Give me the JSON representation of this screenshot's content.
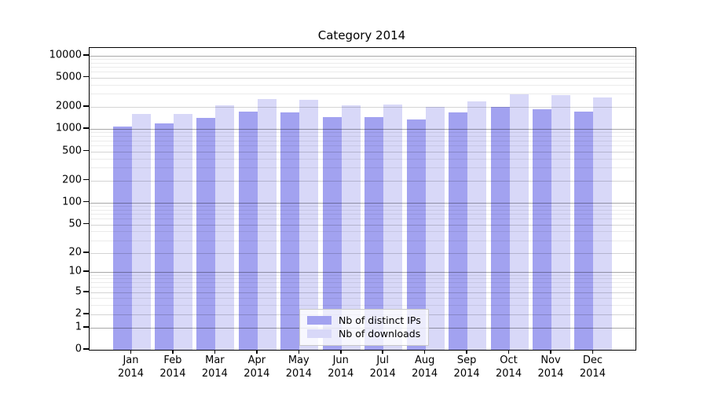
{
  "chart_data": {
    "type": "bar",
    "title": "Category 2014",
    "categories": [
      {
        "month": "Jan",
        "year": "2014"
      },
      {
        "month": "Feb",
        "year": "2014"
      },
      {
        "month": "Mar",
        "year": "2014"
      },
      {
        "month": "Apr",
        "year": "2014"
      },
      {
        "month": "May",
        "year": "2014"
      },
      {
        "month": "Jun",
        "year": "2014"
      },
      {
        "month": "Jul",
        "year": "2014"
      },
      {
        "month": "Aug",
        "year": "2014"
      },
      {
        "month": "Sep",
        "year": "2014"
      },
      {
        "month": "Oct",
        "year": "2014"
      },
      {
        "month": "Nov",
        "year": "2014"
      },
      {
        "month": "Dec",
        "year": "2014"
      }
    ],
    "series": [
      {
        "name": "Nb of distinct IPs",
        "color": "#a2a2f0",
        "values": [
          1080,
          1200,
          1410,
          1710,
          1670,
          1460,
          1440,
          1340,
          1690,
          2010,
          1840,
          1720
        ]
      },
      {
        "name": "Nb of downloads",
        "color": "#d8d8f8",
        "values": [
          1620,
          1600,
          2120,
          2580,
          2520,
          2120,
          2170,
          1990,
          2390,
          2970,
          2920,
          2660
        ]
      }
    ],
    "y_axis": {
      "scale": "log",
      "ticks": [
        10000,
        5000,
        2000,
        1000,
        500,
        200,
        100,
        50,
        20,
        10,
        5,
        2,
        1,
        0
      ],
      "ylim": [
        0,
        13000
      ],
      "grid": true
    },
    "legend": {
      "position": "bottom-center"
    }
  }
}
